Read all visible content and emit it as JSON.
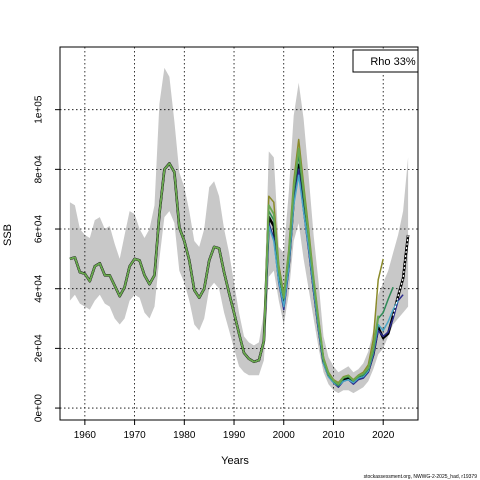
{
  "chart_data": {
    "type": "line",
    "title": "",
    "xlabel": "Years",
    "ylabel": "SSB",
    "xlim": [
      1955,
      2027
    ],
    "ylim": [
      -4000,
      121000
    ],
    "x_ticks": [
      {
        "value": 1960,
        "label": "1960"
      },
      {
        "value": 1970,
        "label": "1970"
      },
      {
        "value": 1980,
        "label": "1980"
      },
      {
        "value": 1990,
        "label": "1990"
      },
      {
        "value": 2000,
        "label": "2000"
      },
      {
        "value": 2010,
        "label": "2010"
      },
      {
        "value": 2020,
        "label": "2020"
      }
    ],
    "y_ticks": [
      {
        "value": 0,
        "label": "0e+00"
      },
      {
        "value": 20000,
        "label": "2e+04"
      },
      {
        "value": 40000,
        "label": "4e+04"
      },
      {
        "value": 60000,
        "label": "6e+04"
      },
      {
        "value": 80000,
        "label": "8e+04"
      },
      {
        "value": 100000,
        "label": "1e+05"
      }
    ],
    "grid": true,
    "legend": {
      "position": "top-right",
      "text": "Rho 33%"
    },
    "footer": "stockassessment.org, NWWG-2-2025_had, r19379",
    "confidence_band": {
      "color": "#c8c8c8",
      "x": [
        1957,
        1958,
        1959,
        1960,
        1961,
        1962,
        1963,
        1964,
        1965,
        1966,
        1967,
        1968,
        1969,
        1970,
        1971,
        1972,
        1973,
        1974,
        1975,
        1976,
        1977,
        1978,
        1979,
        1980,
        1981,
        1982,
        1983,
        1984,
        1985,
        1986,
        1987,
        1988,
        1989,
        1990,
        1991,
        1992,
        1993,
        1994,
        1995,
        1996,
        1997,
        1998,
        1999,
        2000,
        2001,
        2002,
        2003,
        2004,
        2005,
        2006,
        2007,
        2008,
        2009,
        2010,
        2011,
        2012,
        2013,
        2014,
        2015,
        2016,
        2017,
        2018,
        2019,
        2020,
        2021,
        2022,
        2023,
        2024,
        2025
      ],
      "lower": [
        36000,
        38000,
        35000,
        34000,
        33000,
        36000,
        38000,
        35000,
        34000,
        30000,
        28000,
        30000,
        36000,
        38000,
        37000,
        32000,
        30000,
        34000,
        50000,
        64000,
        66000,
        62000,
        46000,
        42000,
        36000,
        28000,
        26000,
        30000,
        40000,
        42000,
        40000,
        32000,
        26000,
        20000,
        14000,
        12000,
        11000,
        11000,
        11000,
        16000,
        44000,
        46000,
        36000,
        28000,
        38000,
        56000,
        62000,
        50000,
        40000,
        30000,
        20000,
        12000,
        8000,
        6000,
        5000,
        6000,
        6000,
        5000,
        6000,
        7000,
        9000,
        13000,
        18000,
        20000,
        24000,
        28000,
        30000,
        32000,
        34000
      ],
      "upper": [
        69000,
        68000,
        60000,
        58000,
        57000,
        63000,
        64000,
        60000,
        61000,
        55000,
        50000,
        58000,
        66000,
        65000,
        60000,
        57000,
        60000,
        68000,
        102000,
        114000,
        111000,
        96000,
        79000,
        74000,
        66000,
        56000,
        54000,
        60000,
        74000,
        76000,
        71000,
        60000,
        52000,
        42000,
        32000,
        24000,
        22000,
        21000,
        22000,
        32000,
        86000,
        84000,
        54000,
        52000,
        72000,
        98000,
        109000,
        97000,
        78000,
        58000,
        42000,
        24000,
        17000,
        14000,
        12000,
        13000,
        14000,
        12000,
        13000,
        15000,
        19000,
        26000,
        38000,
        42000,
        46000,
        52000,
        58000,
        66000,
        84000
      ]
    },
    "series": [
      {
        "color": "#000000",
        "width": 2.6,
        "x": [
          1957,
          1958,
          1959,
          1960,
          1961,
          1962,
          1963,
          1964,
          1965,
          1966,
          1967,
          1968,
          1969,
          1970,
          1971,
          1972,
          1973,
          1974,
          1975,
          1976,
          1977,
          1978,
          1979,
          1980,
          1981,
          1982,
          1983,
          1984,
          1985,
          1986,
          1987,
          1988,
          1989,
          1990,
          1991,
          1992,
          1993,
          1994,
          1995,
          1996,
          1997,
          1998,
          1999,
          2000,
          2001,
          2002,
          2003,
          2004,
          2005,
          2006,
          2007,
          2008,
          2009,
          2010,
          2011,
          2012,
          2013,
          2014,
          2015,
          2016,
          2017,
          2018,
          2019,
          2020,
          2021,
          2022,
          2023,
          2024,
          2025
        ],
        "y": [
          50000,
          50500,
          45500,
          45000,
          42500,
          47500,
          48500,
          44500,
          44500,
          41000,
          37500,
          40500,
          47500,
          50000,
          49500,
          44500,
          41500,
          44500,
          65000,
          80000,
          82000,
          79000,
          60500,
          56000,
          49500,
          39500,
          37000,
          40000,
          49500,
          54000,
          53500,
          45500,
          38500,
          32000,
          25000,
          18500,
          16500,
          15500,
          16000,
          22500,
          64000,
          61000,
          44000,
          35000,
          48000,
          70000,
          81500,
          68000,
          55000,
          40500,
          27000,
          15500,
          11000,
          9000,
          7500,
          9500,
          10000,
          8500,
          10000,
          10500,
          12500,
          18000,
          27000,
          23500,
          25000,
          31000,
          37500,
          43500,
          58000
        ]
      },
      {
        "color": "#2c2c8c",
        "width": 1.5,
        "x": [
          1957,
          1958,
          1959,
          1960,
          1961,
          1962,
          1963,
          1964,
          1965,
          1966,
          1967,
          1968,
          1969,
          1970,
          1971,
          1972,
          1973,
          1974,
          1975,
          1976,
          1977,
          1978,
          1979,
          1980,
          1981,
          1982,
          1983,
          1984,
          1985,
          1986,
          1987,
          1988,
          1989,
          1990,
          1991,
          1992,
          1993,
          1994,
          1995,
          1996,
          1997,
          1998,
          1999,
          2000,
          2001,
          2002,
          2003,
          2004,
          2005,
          2006,
          2007,
          2008,
          2009,
          2010,
          2011,
          2012,
          2013,
          2014,
          2015,
          2016,
          2017,
          2018,
          2019,
          2020,
          2021,
          2022,
          2023,
          2024
        ],
        "y": [
          50000,
          50500,
          45500,
          45000,
          42500,
          47500,
          48500,
          44500,
          44500,
          41000,
          37500,
          40500,
          47500,
          50000,
          49500,
          44500,
          41500,
          44500,
          65000,
          80000,
          82000,
          79000,
          60500,
          56000,
          49500,
          39500,
          37000,
          40000,
          49500,
          54000,
          53500,
          45500,
          38500,
          32000,
          25000,
          18500,
          16500,
          15500,
          16000,
          22500,
          62000,
          57000,
          42000,
          33000,
          46000,
          69000,
          80000,
          66000,
          53000,
          39000,
          26000,
          15000,
          10500,
          8500,
          7000,
          9000,
          9500,
          8000,
          9500,
          10000,
          12000,
          17500,
          26000,
          24000,
          25500,
          30000,
          36000,
          38000
        ]
      },
      {
        "color": "#4aa8c8",
        "width": 1.5,
        "x": [
          1957,
          1958,
          1959,
          1960,
          1961,
          1962,
          1963,
          1964,
          1965,
          1966,
          1967,
          1968,
          1969,
          1970,
          1971,
          1972,
          1973,
          1974,
          1975,
          1976,
          1977,
          1978,
          1979,
          1980,
          1981,
          1982,
          1983,
          1984,
          1985,
          1986,
          1987,
          1988,
          1989,
          1990,
          1991,
          1992,
          1993,
          1994,
          1995,
          1996,
          1997,
          1998,
          1999,
          2000,
          2001,
          2002,
          2003,
          2004,
          2005,
          2006,
          2007,
          2008,
          2009,
          2010,
          2011,
          2012,
          2013,
          2014,
          2015,
          2016,
          2017,
          2018,
          2019,
          2020,
          2021,
          2022,
          2023
        ],
        "y": [
          50000,
          50500,
          45500,
          45000,
          42500,
          47500,
          48500,
          44500,
          44500,
          41000,
          37500,
          40500,
          47500,
          50000,
          49500,
          44500,
          41500,
          44500,
          65000,
          80000,
          82000,
          79000,
          60500,
          56000,
          49500,
          39500,
          37000,
          40000,
          49500,
          54000,
          53500,
          45500,
          38500,
          32000,
          25000,
          18500,
          16500,
          15500,
          16000,
          22500,
          61000,
          56000,
          42500,
          34000,
          47000,
          68000,
          78000,
          66000,
          54000,
          40000,
          26500,
          15000,
          10500,
          8500,
          7500,
          9000,
          9500,
          8500,
          10000,
          10500,
          12500,
          18500,
          28000,
          26000,
          29000,
          33000,
          36000
        ]
      },
      {
        "color": "#2e8b57",
        "width": 1.5,
        "x": [
          1957,
          1958,
          1959,
          1960,
          1961,
          1962,
          1963,
          1964,
          1965,
          1966,
          1967,
          1968,
          1969,
          1970,
          1971,
          1972,
          1973,
          1974,
          1975,
          1976,
          1977,
          1978,
          1979,
          1980,
          1981,
          1982,
          1983,
          1984,
          1985,
          1986,
          1987,
          1988,
          1989,
          1990,
          1991,
          1992,
          1993,
          1994,
          1995,
          1996,
          1997,
          1998,
          1999,
          2000,
          2001,
          2002,
          2003,
          2004,
          2005,
          2006,
          2007,
          2008,
          2009,
          2010,
          2011,
          2012,
          2013,
          2014,
          2015,
          2016,
          2017,
          2018,
          2019,
          2020,
          2021,
          2022
        ],
        "y": [
          50000,
          50500,
          45500,
          45000,
          42500,
          47500,
          48500,
          44500,
          44500,
          41000,
          37500,
          40500,
          47500,
          50000,
          49500,
          44500,
          41500,
          44500,
          65000,
          80000,
          82000,
          79000,
          60500,
          56000,
          49500,
          39500,
          37000,
          40000,
          49500,
          54000,
          53500,
          45500,
          38500,
          32000,
          25000,
          18500,
          16500,
          15500,
          16000,
          22500,
          66000,
          63000,
          45500,
          36500,
          50000,
          72000,
          85000,
          71000,
          57000,
          42000,
          28000,
          16000,
          11000,
          9000,
          7500,
          10000,
          10500,
          9000,
          10500,
          11000,
          13000,
          19000,
          30000,
          32000,
          36500,
          40500
        ]
      },
      {
        "color": "#8a8a2a",
        "width": 1.5,
        "x": [
          1957,
          1958,
          1959,
          1960,
          1961,
          1962,
          1963,
          1964,
          1965,
          1966,
          1967,
          1968,
          1969,
          1970,
          1971,
          1972,
          1973,
          1974,
          1975,
          1976,
          1977,
          1978,
          1979,
          1980,
          1981,
          1982,
          1983,
          1984,
          1985,
          1986,
          1987,
          1988,
          1989,
          1990,
          1991,
          1992,
          1993,
          1994,
          1995,
          1996,
          1997,
          1998,
          1999,
          2000,
          2001,
          2002,
          2003,
          2004,
          2005,
          2006,
          2007,
          2008,
          2009,
          2010,
          2011,
          2012,
          2013,
          2014,
          2015,
          2016,
          2017,
          2018,
          2019,
          2020
        ],
        "y": [
          50000,
          50500,
          45500,
          45000,
          42500,
          47500,
          48500,
          44500,
          44500,
          41000,
          37500,
          40500,
          47500,
          50000,
          49500,
          44500,
          41500,
          44500,
          65000,
          80000,
          82000,
          79000,
          60500,
          56000,
          49500,
          39500,
          37000,
          40000,
          49500,
          54000,
          53500,
          45500,
          38500,
          32000,
          25000,
          18500,
          16500,
          15500,
          16000,
          22500,
          71000,
          69000,
          48000,
          38000,
          53000,
          76000,
          90000,
          75000,
          60000,
          44000,
          30000,
          17000,
          12000,
          9500,
          8500,
          10500,
          11000,
          9500,
          11000,
          12000,
          14500,
          23000,
          43000,
          50000
        ]
      },
      {
        "color": "#6aa84f",
        "width": 1.8,
        "x": [
          1957,
          1958,
          1959,
          1960,
          1961,
          1962,
          1963,
          1964,
          1965,
          1966,
          1967,
          1968,
          1969,
          1970,
          1971,
          1972,
          1973,
          1974,
          1975,
          1976,
          1977,
          1978,
          1979,
          1980,
          1981,
          1982,
          1983,
          1984,
          1985,
          1986,
          1987,
          1988,
          1989,
          1990,
          1991,
          1992,
          1993,
          1994,
          1995,
          1996,
          1997,
          1998,
          1999,
          2000,
          2001,
          2002,
          2003,
          2004,
          2005,
          2006,
          2007,
          2008,
          2009,
          2010,
          2011,
          2012,
          2013,
          2014,
          2015,
          2016,
          2017,
          2018,
          2019
        ],
        "y": [
          50000,
          50500,
          45500,
          45000,
          42500,
          47500,
          48500,
          44500,
          44500,
          41000,
          37500,
          40500,
          47500,
          50000,
          49500,
          44500,
          41500,
          44500,
          65000,
          80000,
          82000,
          79000,
          60500,
          56000,
          49500,
          39500,
          37000,
          40000,
          49500,
          54000,
          53500,
          45500,
          38500,
          32000,
          25000,
          18500,
          16500,
          15500,
          16000,
          22500,
          68000,
          65000,
          46500,
          37000,
          51500,
          74000,
          87000,
          73000,
          58000,
          43000,
          29000,
          16500,
          11500,
          9200,
          8000,
          10200,
          10800,
          9200,
          10800,
          11500,
          13500,
          20000,
          31000
        ]
      }
    ],
    "final_dashed": {
      "color": "#ffffff",
      "x": [
        2022,
        2023,
        2024,
        2025
      ],
      "y": [
        31000,
        37500,
        43500,
        58000
      ]
    }
  }
}
